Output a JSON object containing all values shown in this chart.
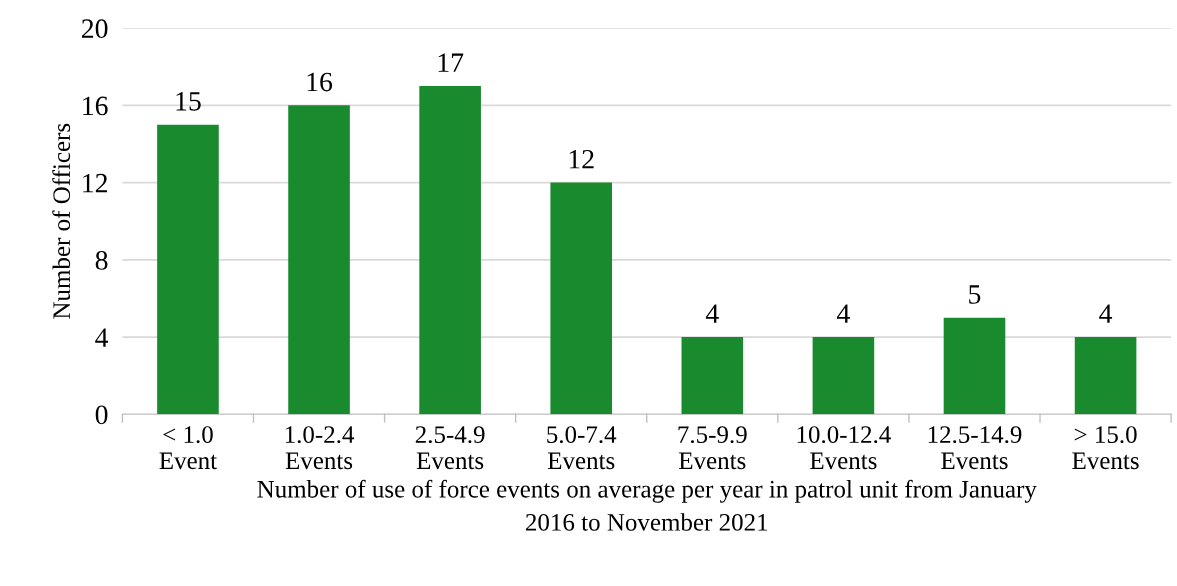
{
  "chart_data": {
    "type": "bar",
    "categories": [
      "< 1.0\nEvent",
      "1.0-2.4\nEvents",
      "2.5-4.9\nEvents",
      "5.0-7.4\nEvents",
      "7.5-9.9\nEvents",
      "10.0-12.4\nEvents",
      "12.5-14.9\nEvents",
      "> 15.0\nEvents"
    ],
    "values": [
      15,
      16,
      17,
      12,
      4,
      4,
      5,
      4
    ],
    "color": "#1a8a2e",
    "xlabel": "Number of use of force events on average per year in patrol unit from January\n2016 to November 2021",
    "ylabel": "Number of Officers",
    "ylim": [
      0,
      20
    ],
    "yticks": [
      0,
      4,
      8,
      12,
      16,
      20
    ],
    "grid": "y",
    "data_labels": true
  }
}
